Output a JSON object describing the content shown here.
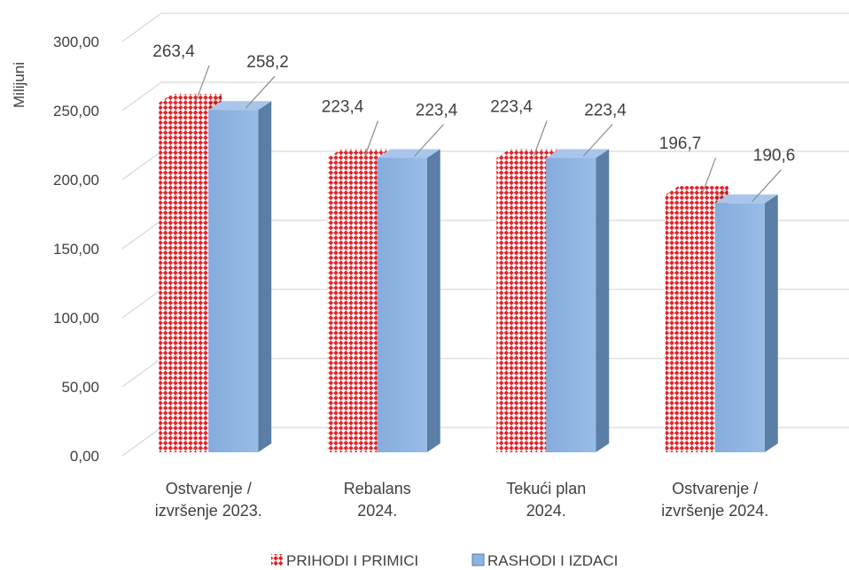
{
  "chart_data": {
    "type": "bar",
    "ylabel": "Milijuni",
    "ylim": [
      0,
      300
    ],
    "y_tick_step": 50,
    "y_tick_labels": [
      "0,00",
      "50,00",
      "100,00",
      "150,00",
      "200,00",
      "250,00",
      "300,00"
    ],
    "categories": [
      [
        "Ostvarenje /",
        "izvršenje 2023."
      ],
      [
        "Rebalans",
        "2024."
      ],
      [
        "Tekući plan",
        "2024."
      ],
      [
        "Ostvarenje /",
        "izvršenje 2024."
      ]
    ],
    "series": [
      {
        "name": "PRIHODI I PRIMICI",
        "values": [
          263.4,
          223.4,
          223.4,
          196.7
        ],
        "labels": [
          "263,4",
          "223,4",
          "223,4",
          "196,7"
        ],
        "color": "#e8262b",
        "pattern": "diagonal-check"
      },
      {
        "name": "RASHODI I IZDACI",
        "values": [
          258.2,
          223.4,
          223.4,
          190.6
        ],
        "labels": [
          "258,2",
          "223,4",
          "223,4",
          "190,6"
        ],
        "color": "#8db3e2",
        "side_color": "#5a7ea6"
      }
    ],
    "grid": true,
    "legend_position": "bottom"
  }
}
